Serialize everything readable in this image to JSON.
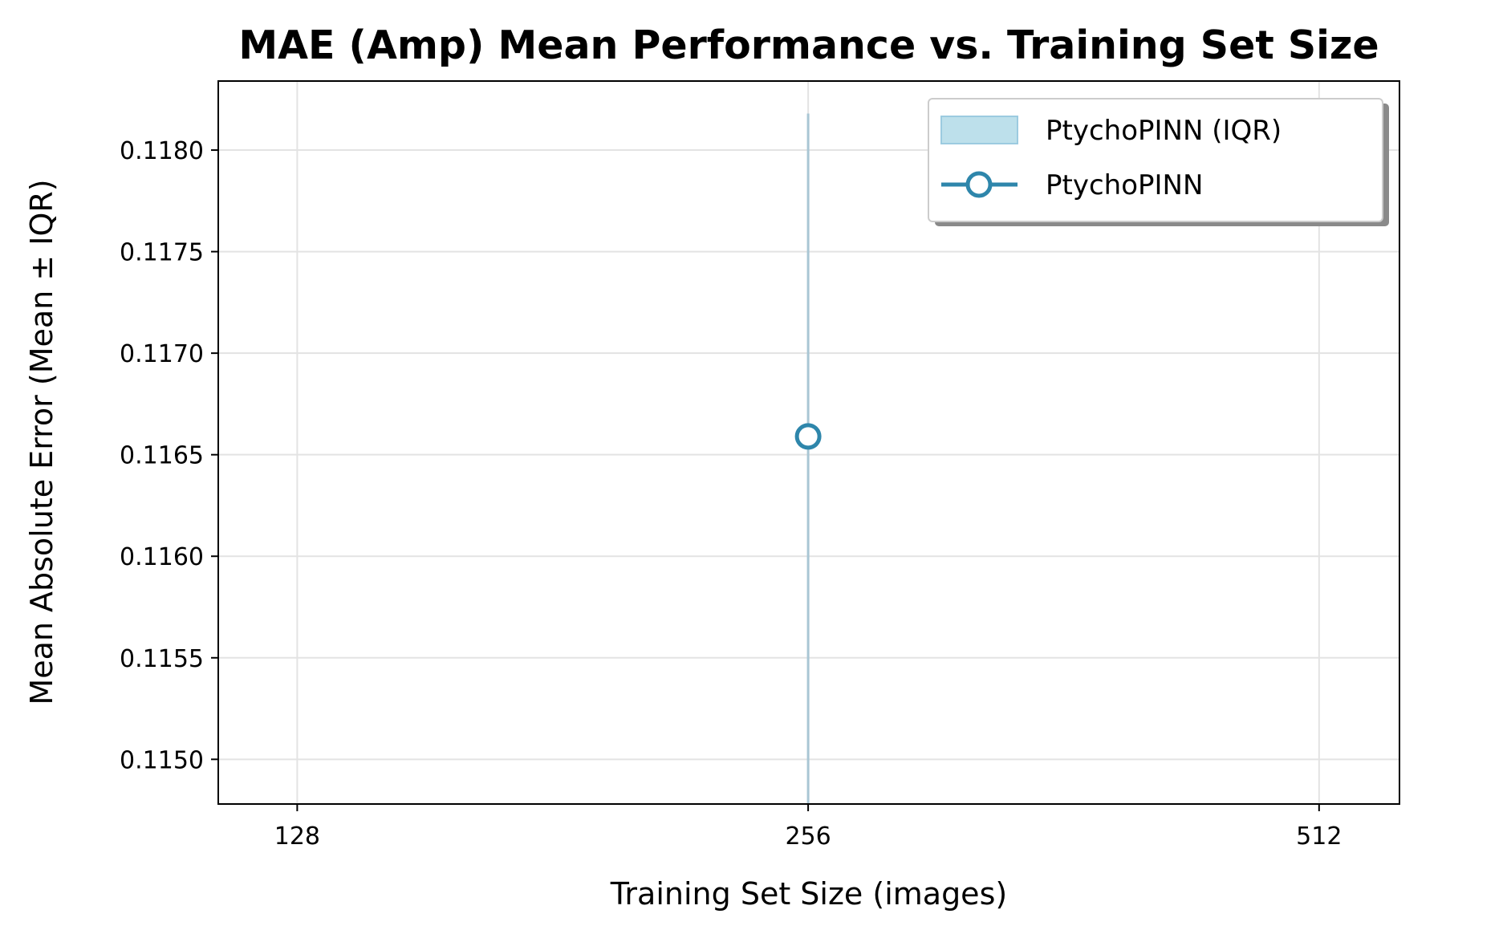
{
  "chart_data": {
    "type": "line",
    "title": "MAE (Amp) Mean Performance vs. Training Set Size",
    "xlabel": "Training Set Size (images)",
    "ylabel": "Mean Absolute Error (Mean ± IQR)",
    "x_scale": "log2",
    "x_ticks": [
      128,
      256,
      512
    ],
    "x_tick_labels": [
      "128",
      "256",
      "512"
    ],
    "xlim": [
      115,
      571
    ],
    "y_ticks": [
      0.115,
      0.1155,
      0.116,
      0.1165,
      0.117,
      0.1175,
      0.118
    ],
    "y_tick_labels": [
      "0.1150",
      "0.1155",
      "0.1160",
      "0.1165",
      "0.1170",
      "0.1175",
      "0.1180"
    ],
    "ylim": [
      0.11478,
      0.11834
    ],
    "grid": true,
    "legend_position": "top-right",
    "series": [
      {
        "name": "PtychoPINN",
        "color": "#2e86ab",
        "marker": "open-circle",
        "x": [
          256
        ],
        "y": [
          0.11659
        ],
        "iqr_low": [
          0.11473
        ],
        "iqr_high": [
          0.11818
        ]
      }
    ],
    "legend": [
      {
        "label": "PtychoPINN (IQR)",
        "kind": "patch",
        "color": "#add8e6"
      },
      {
        "label": "PtychoPINN",
        "kind": "line-marker",
        "color": "#2e86ab"
      }
    ]
  }
}
